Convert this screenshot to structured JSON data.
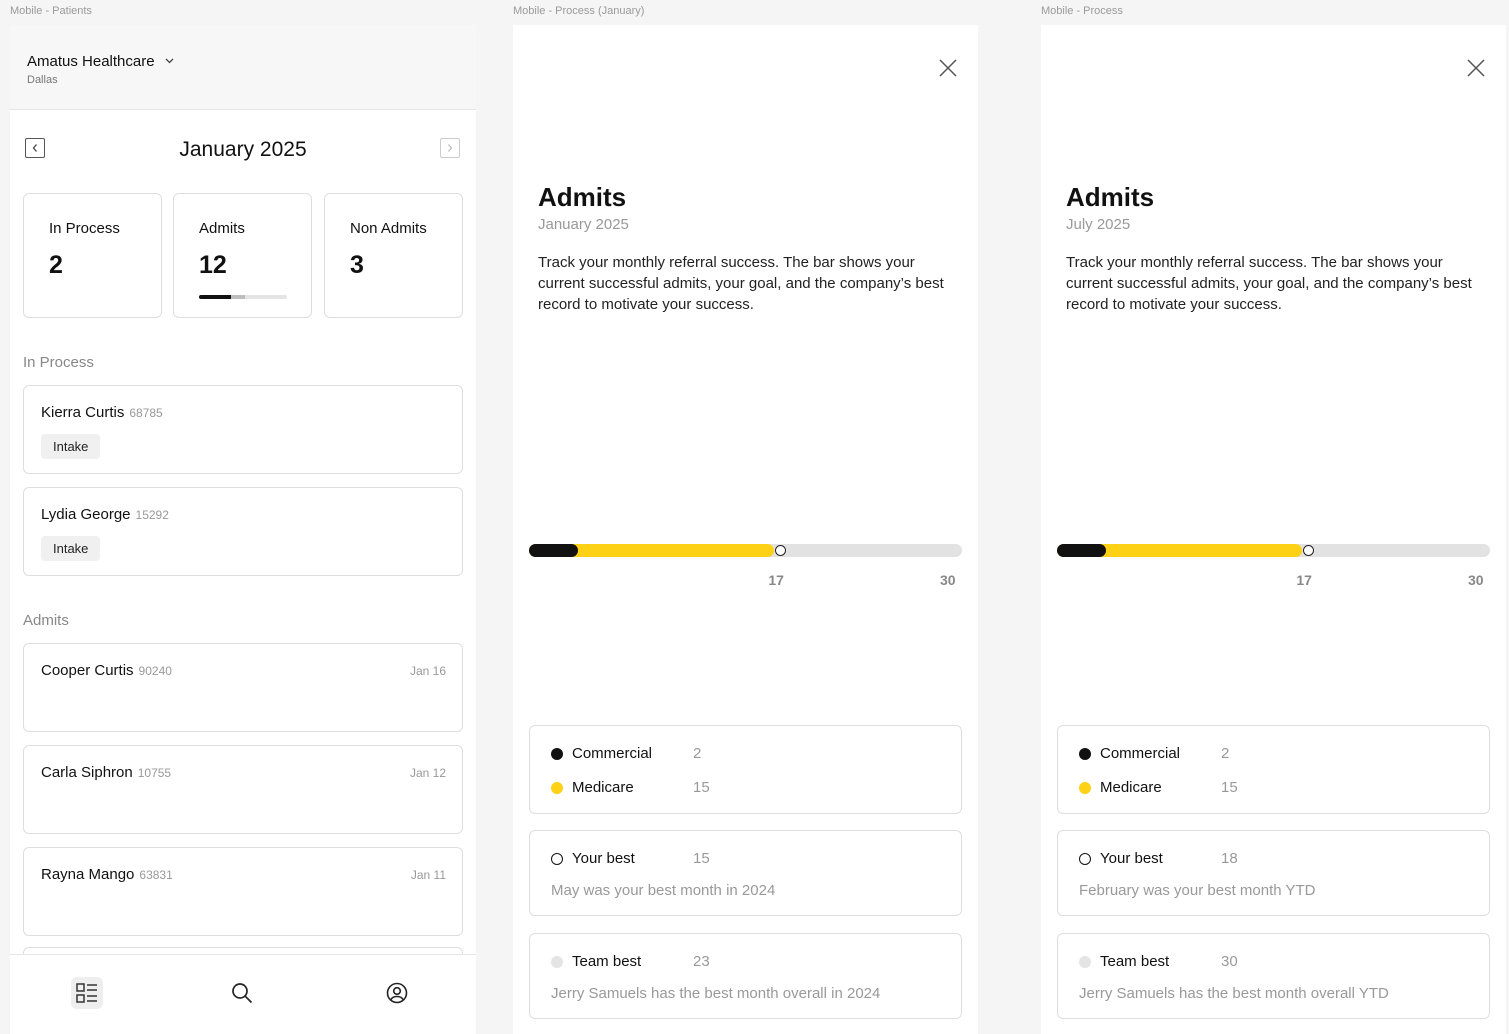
{
  "frames": {
    "patients_label": "Mobile - Patients",
    "process_jan_label": "Mobile - Process (January)",
    "process_label": "Mobile - Process"
  },
  "patients": {
    "org_name": "Amatus Healthcare",
    "org_city": "Dallas",
    "month": "January 2025",
    "stats": [
      {
        "label": "In Process",
        "value": "2"
      },
      {
        "label": "Admits",
        "value": "12"
      },
      {
        "label": "Non Admits",
        "value": "3"
      }
    ],
    "admits_progress": {
      "commercial_fraction": 0.36,
      "medicare_fraction": 0.16
    },
    "in_process_title": "In Process",
    "in_process": [
      {
        "name": "Kierra Curtis",
        "id": "68785",
        "tag": "Intake"
      },
      {
        "name": "Lydia George",
        "id": "15292",
        "tag": "Intake"
      }
    ],
    "admits_title": "Admits",
    "admits": [
      {
        "name": "Cooper Curtis",
        "id": "90240",
        "date": "Jan 16"
      },
      {
        "name": "Carla Siphron",
        "id": "10755",
        "date": "Jan 12"
      },
      {
        "name": "Rayna Mango",
        "id": "63831",
        "date": "Jan 11"
      }
    ]
  },
  "detail_jan": {
    "title": "Admits",
    "subtitle": "January 2025",
    "description": "Track your monthly referral success. The bar shows your current successful admits, your goal, and the company’s best record to motivate your success.",
    "bar": {
      "commercial": 2,
      "medicare": 15,
      "goal": 17,
      "max": 30,
      "goal_label": "17",
      "max_label": "30"
    },
    "commercial_label": "Commercial",
    "commercial_value": "2",
    "medicare_label": "Medicare",
    "medicare_value": "15",
    "your_best_label": "Your best",
    "your_best_value": "15",
    "your_best_note": "May was your best month in 2024",
    "team_best_label": "Team best",
    "team_best_value": "23",
    "team_best_note": "Jerry Samuels has the best month overall in 2024"
  },
  "detail_jul": {
    "title": "Admits",
    "subtitle": "July 2025",
    "description": "Track your monthly referral success. The bar shows your current successful admits, your goal, and the company’s best record to motivate your success.",
    "bar": {
      "commercial": 2,
      "medicare": 15,
      "goal": 17,
      "max": 30,
      "goal_label": "17",
      "max_label": "30"
    },
    "commercial_label": "Commercial",
    "commercial_value": "2",
    "medicare_label": "Medicare",
    "medicare_value": "15",
    "your_best_label": "Your best",
    "your_best_value": "18",
    "your_best_note": "February was your best month YTD",
    "team_best_label": "Team best",
    "team_best_value": "30",
    "team_best_note": "Jerry Samuels has the best month overall YTD"
  },
  "colors": {
    "commercial": "#111111",
    "medicare": "#fcd116",
    "track": "#e2e2e2",
    "team_best_dot": "#e4e4e4"
  },
  "icons": {
    "list": "list-icon",
    "search": "search-icon",
    "profile": "user-circle-icon",
    "close": "close-icon"
  }
}
